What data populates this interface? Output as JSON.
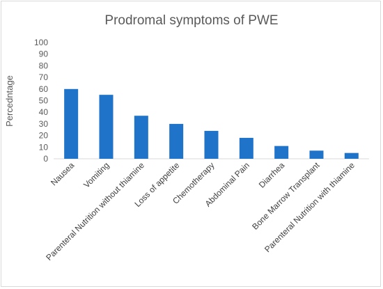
{
  "chart_data": {
    "type": "bar",
    "title": "Prodromal symptoms of PWE",
    "xlabel": "",
    "ylabel": "Percedntage",
    "ylim": [
      0,
      100
    ],
    "yticks": [
      0,
      10,
      20,
      30,
      40,
      50,
      60,
      70,
      80,
      90,
      100
    ],
    "categories": [
      "Nausea",
      "Vomiting",
      "Parenteral Nutrition without thiamine",
      "Loss of appetite",
      "Chemotherapy",
      "Abdominal Pain",
      "Diarrhea",
      "Bone Marrow Transplant",
      "Parenteral Nutrition with thiamine"
    ],
    "values": [
      60,
      55,
      37,
      30,
      24,
      18,
      11,
      7,
      5
    ],
    "grid": false,
    "legend": "none",
    "bar_color": "#1f73c9"
  }
}
